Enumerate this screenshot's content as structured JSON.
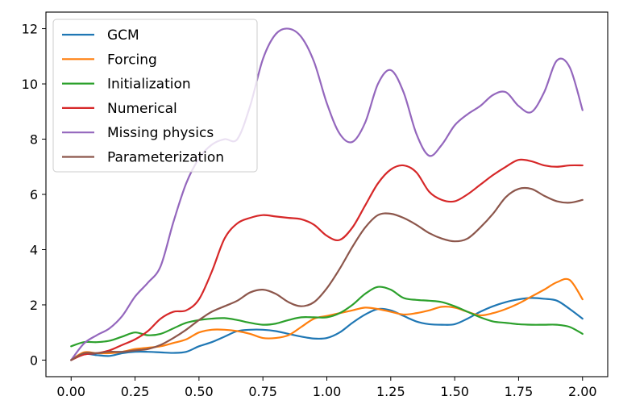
{
  "chart_data": {
    "type": "line",
    "title": "",
    "xlabel": "",
    "ylabel": "",
    "xlim": [
      -0.0985,
      2.0985
    ],
    "ylim": [
      -0.6,
      12.6
    ],
    "xticks": [
      0.0,
      0.25,
      0.5,
      0.75,
      1.0,
      1.25,
      1.5,
      1.75,
      2.0
    ],
    "xtick_labels": [
      "0.00",
      "0.25",
      "0.50",
      "0.75",
      "1.00",
      "1.25",
      "1.50",
      "1.75",
      "2.00"
    ],
    "yticks": [
      0,
      2,
      4,
      6,
      8,
      10,
      12
    ],
    "ytick_labels": [
      "0",
      "2",
      "4",
      "6",
      "8",
      "10",
      "12"
    ],
    "grid": false,
    "legend_position": "top-left",
    "x": [
      0.0,
      0.05,
      0.1,
      0.15,
      0.2,
      0.25,
      0.3,
      0.35,
      0.4,
      0.45,
      0.5,
      0.55,
      0.6,
      0.65,
      0.7,
      0.75,
      0.8,
      0.85,
      0.9,
      0.95,
      1.0,
      1.05,
      1.1,
      1.15,
      1.2,
      1.25,
      1.3,
      1.35,
      1.4,
      1.45,
      1.5,
      1.55,
      1.6,
      1.65,
      1.7,
      1.75,
      1.8,
      1.85,
      1.9,
      1.95,
      2.0
    ],
    "series": [
      {
        "name": "GCM",
        "color": "#1f77b4",
        "values": [
          0.0,
          0.22,
          0.18,
          0.15,
          0.25,
          0.3,
          0.3,
          0.28,
          0.26,
          0.3,
          0.5,
          0.65,
          0.85,
          1.05,
          1.1,
          1.1,
          1.05,
          0.95,
          0.85,
          0.78,
          0.8,
          1.0,
          1.35,
          1.65,
          1.85,
          1.8,
          1.6,
          1.4,
          1.3,
          1.28,
          1.3,
          1.5,
          1.75,
          1.95,
          2.1,
          2.2,
          2.25,
          2.22,
          2.15,
          1.85,
          1.5
        ]
      },
      {
        "name": "Forcing",
        "color": "#ff7f0e",
        "values": [
          0.0,
          0.28,
          0.25,
          0.25,
          0.3,
          0.4,
          0.45,
          0.5,
          0.62,
          0.75,
          1.0,
          1.1,
          1.1,
          1.05,
          0.95,
          0.8,
          0.8,
          0.9,
          1.2,
          1.5,
          1.6,
          1.7,
          1.8,
          1.9,
          1.85,
          1.75,
          1.65,
          1.7,
          1.8,
          1.93,
          1.9,
          1.75,
          1.62,
          1.7,
          1.85,
          2.05,
          2.3,
          2.55,
          2.82,
          2.9,
          2.2
        ]
      },
      {
        "name": "Initialization",
        "color": "#2ca02c",
        "values": [
          0.5,
          0.65,
          0.65,
          0.7,
          0.85,
          1.0,
          0.9,
          0.95,
          1.15,
          1.35,
          1.45,
          1.5,
          1.52,
          1.45,
          1.35,
          1.28,
          1.32,
          1.45,
          1.55,
          1.55,
          1.55,
          1.7,
          2.0,
          2.4,
          2.65,
          2.55,
          2.25,
          2.18,
          2.15,
          2.1,
          1.95,
          1.75,
          1.55,
          1.4,
          1.35,
          1.3,
          1.28,
          1.28,
          1.28,
          1.2,
          0.95
        ]
      },
      {
        "name": "Numerical",
        "color": "#d62728",
        "values": [
          0.0,
          0.2,
          0.25,
          0.35,
          0.55,
          0.75,
          1.05,
          1.5,
          1.75,
          1.8,
          2.2,
          3.2,
          4.4,
          4.95,
          5.15,
          5.25,
          5.2,
          5.15,
          5.1,
          4.9,
          4.5,
          4.35,
          4.8,
          5.6,
          6.4,
          6.9,
          7.05,
          6.8,
          6.1,
          5.8,
          5.75,
          6.0,
          6.35,
          6.7,
          7.0,
          7.25,
          7.2,
          7.05,
          7.0,
          7.05,
          7.05
        ]
      },
      {
        "name": "Missing physics",
        "color": "#9467bd",
        "values": [
          0.0,
          0.6,
          0.9,
          1.15,
          1.6,
          2.3,
          2.8,
          3.4,
          5.0,
          6.4,
          7.3,
          7.8,
          8.0,
          8.0,
          9.2,
          10.9,
          11.8,
          12.0,
          11.7,
          10.8,
          9.3,
          8.2,
          7.9,
          8.6,
          10.0,
          10.5,
          9.7,
          8.2,
          7.4,
          7.8,
          8.5,
          8.9,
          9.2,
          9.6,
          9.7,
          9.2,
          8.98,
          9.7,
          10.85,
          10.6,
          9.05
        ]
      },
      {
        "name": "Parameterization",
        "color": "#8c564b",
        "values": [
          0.0,
          0.25,
          0.25,
          0.3,
          0.3,
          0.35,
          0.4,
          0.55,
          0.8,
          1.1,
          1.45,
          1.75,
          1.95,
          2.15,
          2.45,
          2.55,
          2.4,
          2.1,
          1.95,
          2.1,
          2.6,
          3.3,
          4.1,
          4.8,
          5.25,
          5.3,
          5.15,
          4.9,
          4.6,
          4.4,
          4.3,
          4.4,
          4.8,
          5.3,
          5.9,
          6.2,
          6.2,
          5.95,
          5.75,
          5.7,
          5.8
        ]
      }
    ]
  }
}
